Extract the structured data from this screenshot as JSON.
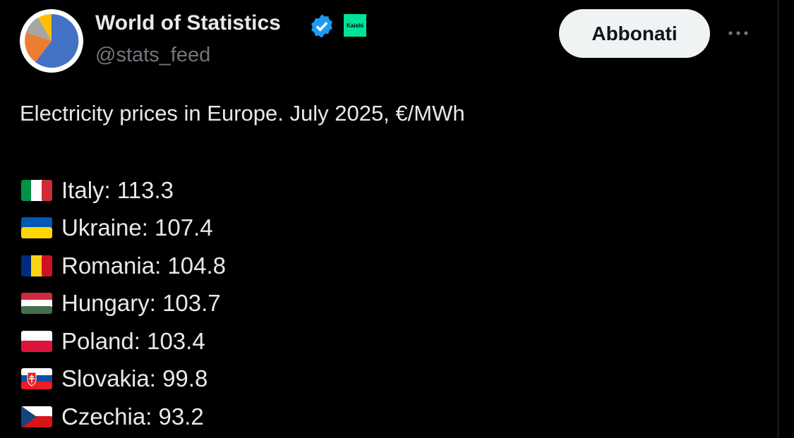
{
  "header": {
    "name": "World of Statistics",
    "badge": "Kaishi",
    "handle": "@stats_feed",
    "button": "Abbonati"
  },
  "post": {
    "text": "Electricity prices in Europe. July 2025, €/MWh",
    "items": [
      "Italy: 113.3",
      "Ukraine: 107.4",
      "Romania: 104.8",
      "Hungary: 103.7",
      "Poland: 103.4",
      "Slovakia: 99.8",
      "Czechia: 93.2"
    ]
  }
}
